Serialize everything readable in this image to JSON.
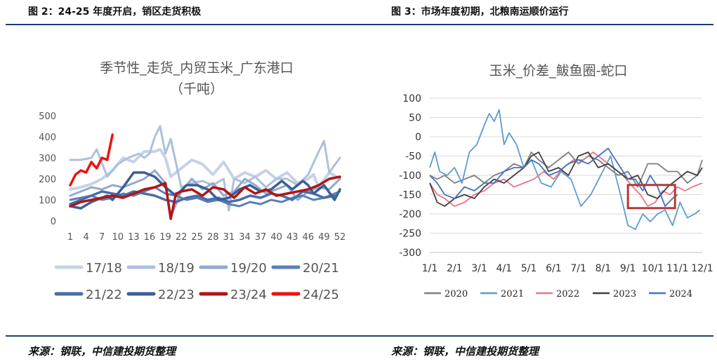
{
  "captions": {
    "left": "图 2：24-25 年度开启，销区走货积极",
    "right": "图 3：市场年度初期，北粮南运顺价运行"
  },
  "sources": {
    "left": "来源：钢联，中信建投期货整理",
    "right": "来源：钢联，中信建投期货整理"
  },
  "chart_data": [
    {
      "type": "line",
      "title": "季节性_走货_内贸玉米_广东港口",
      "subtitle": "（千吨）",
      "x_ticks": [
        "1",
        "4",
        "7",
        "10",
        "13",
        "16",
        "19",
        "22",
        "25",
        "28",
        "31",
        "34",
        "37",
        "40",
        "43",
        "46",
        "49",
        "52"
      ],
      "xlim": [
        1,
        52
      ],
      "ylim": [
        0,
        500
      ],
      "y_ticks": [
        "0",
        "100",
        "200",
        "300",
        "400",
        "500"
      ],
      "legend_position": "bottom",
      "series": [
        {
          "name": "17/18",
          "color": "#c6d2e6",
          "width": 4,
          "x": [
            1,
            3,
            5,
            7,
            9,
            11,
            13,
            15,
            17,
            18,
            19,
            20,
            22,
            24,
            26,
            28,
            30,
            32,
            34,
            36,
            38,
            40,
            42,
            44,
            46,
            47,
            48,
            50,
            52
          ],
          "y": [
            150,
            160,
            175,
            200,
            240,
            300,
            280,
            330,
            330,
            340,
            300,
            210,
            250,
            290,
            270,
            220,
            280,
            200,
            230,
            210,
            240,
            200,
            230,
            180,
            200,
            220,
            160,
            230,
            200
          ]
        },
        {
          "name": "18/19",
          "color": "#adc0dc",
          "width": 3,
          "x": [
            1,
            3,
            5,
            6,
            8,
            10,
            12,
            14,
            15,
            16,
            17,
            18,
            19,
            20,
            22,
            24,
            26,
            28,
            30,
            31,
            32,
            34,
            36,
            38,
            40,
            42,
            44,
            46,
            48,
            49,
            50,
            52
          ],
          "y": [
            290,
            290,
            300,
            340,
            210,
            270,
            300,
            320,
            300,
            320,
            400,
            450,
            320,
            390,
            160,
            180,
            190,
            170,
            200,
            50,
            200,
            180,
            210,
            160,
            200,
            200,
            170,
            220,
            330,
            380,
            230,
            300
          ]
        },
        {
          "name": "19/20",
          "color": "#93a9cf",
          "width": 3,
          "x": [
            1,
            3,
            5,
            7,
            9,
            11,
            13,
            15,
            17,
            19,
            20,
            22,
            24,
            26,
            28,
            30,
            32,
            34,
            36,
            38,
            40,
            42,
            44,
            46,
            48,
            50,
            52
          ],
          "y": [
            120,
            140,
            160,
            150,
            170,
            160,
            180,
            200,
            240,
            180,
            20,
            140,
            200,
            150,
            180,
            120,
            140,
            200,
            170,
            130,
            150,
            170,
            100,
            140,
            160,
            150,
            200
          ]
        },
        {
          "name": "20/21",
          "color": "#5b80b6",
          "width": 3,
          "x": [
            1,
            3,
            5,
            7,
            9,
            11,
            13,
            15,
            17,
            19,
            21,
            23,
            25,
            27,
            29,
            31,
            33,
            35,
            37,
            39,
            41,
            43,
            45,
            47,
            49,
            51,
            52
          ],
          "y": [
            100,
            110,
            120,
            100,
            110,
            130,
            120,
            140,
            160,
            130,
            120,
            100,
            110,
            90,
            100,
            80,
            70,
            90,
            80,
            100,
            90,
            110,
            120,
            100,
            110,
            130,
            140
          ]
        },
        {
          "name": "21/22",
          "color": "#4a6ea8",
          "width": 3.5,
          "x": [
            1,
            3,
            5,
            7,
            9,
            11,
            13,
            15,
            17,
            19,
            21,
            23,
            25,
            27,
            29,
            31,
            33,
            35,
            37,
            39,
            41,
            43,
            45,
            47,
            49,
            51
          ],
          "y": [
            80,
            100,
            120,
            140,
            130,
            120,
            140,
            130,
            120,
            100,
            90,
            110,
            120,
            100,
            110,
            90,
            100,
            120,
            110,
            130,
            120,
            100,
            140,
            130,
            110,
            120
          ]
        },
        {
          "name": "22/23",
          "color": "#3b5f97",
          "width": 3.5,
          "x": [
            1,
            3,
            5,
            7,
            8,
            9,
            11,
            13,
            15,
            17,
            19,
            21,
            23,
            25,
            27,
            29,
            31,
            33,
            35,
            37,
            39,
            41,
            43,
            45,
            46,
            47,
            49,
            51,
            52
          ],
          "y": [
            70,
            60,
            90,
            110,
            120,
            100,
            160,
            230,
            230,
            210,
            160,
            120,
            170,
            170,
            150,
            100,
            110,
            150,
            170,
            140,
            150,
            190,
            150,
            190,
            170,
            130,
            170,
            100,
            150
          ]
        },
        {
          "name": "23/24",
          "color": "#b01616",
          "width": 3.5,
          "x": [
            1,
            3,
            5,
            7,
            9,
            11,
            13,
            15,
            17,
            19,
            20,
            21,
            22,
            24,
            26,
            28,
            30,
            32,
            34,
            36,
            38,
            40,
            42,
            44,
            46,
            48,
            50,
            52
          ],
          "y": [
            70,
            90,
            100,
            110,
            120,
            110,
            130,
            150,
            160,
            180,
            10,
            130,
            140,
            150,
            120,
            160,
            150,
            110,
            160,
            130,
            150,
            120,
            130,
            140,
            150,
            170,
            200,
            210
          ]
        },
        {
          "name": "24/25",
          "color": "#ee1111",
          "width": 3.5,
          "x": [
            1,
            2,
            3,
            4,
            5,
            6,
            7,
            8,
            9
          ],
          "y": [
            170,
            220,
            240,
            230,
            280,
            250,
            300,
            290,
            410
          ]
        }
      ]
    },
    {
      "type": "line",
      "title": "玉米_价差_鲅鱼圈-蛇口",
      "x_ticks": [
        "1/1",
        "2/1",
        "3/1",
        "4/1",
        "5/1",
        "6/1",
        "7/1",
        "8/1",
        "9/1",
        "10/1",
        "11/1",
        "12/1"
      ],
      "xlim": [
        0,
        11
      ],
      "ylim": [
        -300,
        100
      ],
      "y_ticks": [
        "100",
        "50",
        "0",
        "-50",
        "-100",
        "-150",
        "-200",
        "-250",
        "-300"
      ],
      "grid": true,
      "legend_position": "bottom",
      "annotation": {
        "type": "highlight-box",
        "x_range": [
          8.0,
          9.9
        ],
        "y_range": [
          -185,
          -125
        ],
        "color": "#b33a3a"
      },
      "series": [
        {
          "name": "2020",
          "color": "#7f7f7f",
          "x": [
            0,
            0.3,
            0.6,
            1.0,
            1.4,
            1.8,
            2.2,
            2.6,
            3.0,
            3.4,
            3.8,
            4.1,
            4.4,
            4.8,
            5.2,
            5.6,
            6.0,
            6.4,
            6.8,
            7.2,
            7.6,
            8.0,
            8.4,
            8.8,
            9.2,
            9.6,
            10.0,
            10.4,
            10.8,
            11.0
          ],
          "y": [
            -100,
            -110,
            -100,
            -120,
            -110,
            -100,
            -120,
            -100,
            -90,
            -70,
            -80,
            -40,
            -60,
            -80,
            -60,
            -40,
            -70,
            -50,
            -60,
            -80,
            -100,
            -90,
            -130,
            -70,
            -70,
            -90,
            -90,
            -120,
            -100,
            -60
          ]
        },
        {
          "name": "2021",
          "color": "#5b9bd5",
          "x": [
            0,
            0.2,
            0.4,
            0.7,
            1.0,
            1.3,
            1.6,
            1.9,
            2.2,
            2.4,
            2.6,
            2.8,
            3.0,
            3.2,
            3.5,
            3.8,
            4.1,
            4.5,
            4.9,
            5.3,
            5.7,
            6.1,
            6.5,
            6.9,
            7.3,
            7.7,
            8.0,
            8.3,
            8.6,
            8.9,
            9.2,
            9.5,
            9.8,
            10.1,
            10.4,
            10.7,
            10.9
          ],
          "y": [
            -80,
            -40,
            -90,
            -100,
            -80,
            -120,
            -40,
            -20,
            30,
            60,
            40,
            70,
            -20,
            10,
            -20,
            -80,
            -60,
            -120,
            -130,
            -90,
            -110,
            -180,
            -150,
            -100,
            -50,
            -150,
            -230,
            -240,
            -200,
            -220,
            -200,
            -190,
            -230,
            -170,
            -210,
            -200,
            -190
          ]
        },
        {
          "name": "2022",
          "color": "#ee7582",
          "x": [
            0,
            0.3,
            0.6,
            1.0,
            1.4,
            1.8,
            2.2,
            2.6,
            3.0,
            3.4,
            3.8,
            4.2,
            4.6,
            5.0,
            5.4,
            5.8,
            6.2,
            6.6,
            7.0,
            7.4,
            7.8,
            8.2,
            8.5,
            8.8,
            9.1,
            9.4,
            9.7,
            10.0,
            10.3,
            10.6,
            11.0
          ],
          "y": [
            -120,
            -150,
            -160,
            -180,
            -170,
            -150,
            -140,
            -120,
            -110,
            -130,
            -120,
            -110,
            -90,
            -110,
            -80,
            -60,
            -60,
            -40,
            -60,
            -80,
            -100,
            -130,
            -150,
            -180,
            -170,
            -140,
            -150,
            -130,
            -140,
            -130,
            -120
          ]
        },
        {
          "name": "2023",
          "color": "#404040",
          "x": [
            0,
            0.3,
            0.6,
            1.0,
            1.4,
            1.8,
            2.2,
            2.6,
            3.0,
            3.4,
            3.8,
            4.1,
            4.4,
            4.8,
            5.2,
            5.6,
            6.0,
            6.4,
            6.8,
            7.2,
            7.6,
            8.0,
            8.4,
            8.8,
            9.2,
            9.6,
            10.0,
            10.4,
            10.8,
            11.0
          ],
          "y": [
            -120,
            -170,
            -180,
            -160,
            -150,
            -160,
            -130,
            -110,
            -120,
            -100,
            -80,
            -50,
            -40,
            -90,
            -80,
            -100,
            -50,
            -40,
            -80,
            -70,
            -90,
            -110,
            -100,
            -150,
            -160,
            -130,
            -110,
            -90,
            -100,
            -80
          ]
        },
        {
          "name": "2024",
          "color": "#4472c4",
          "x": [
            0,
            0.3,
            0.6,
            1.0,
            1.4,
            1.8,
            2.2,
            2.6,
            3.0,
            3.4,
            3.8,
            4.1,
            4.4,
            4.8,
            5.2,
            5.6,
            6.0,
            6.4,
            6.8,
            7.2,
            7.6,
            8.0,
            8.3,
            8.6,
            8.9,
            9.2,
            9.5,
            9.8,
            10.0
          ],
          "y": [
            -100,
            -120,
            -150,
            -160,
            -130,
            -140,
            -120,
            -120,
            -90,
            -80,
            -80,
            -60,
            -70,
            -100,
            -90,
            -70,
            -60,
            -70,
            -50,
            -30,
            -70,
            -110,
            -110,
            -140,
            -100,
            -130,
            -180,
            -160,
            -150
          ]
        }
      ]
    }
  ]
}
